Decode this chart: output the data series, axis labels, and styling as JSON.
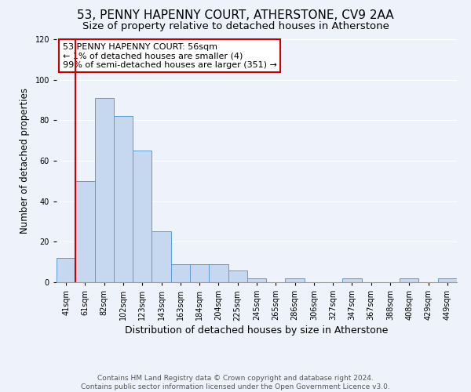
{
  "title": "53, PENNY HAPENNY COURT, ATHERSTONE, CV9 2AA",
  "subtitle": "Size of property relative to detached houses in Atherstone",
  "xlabel": "Distribution of detached houses by size in Atherstone",
  "ylabel": "Number of detached properties",
  "bar_labels": [
    "41sqm",
    "61sqm",
    "82sqm",
    "102sqm",
    "123sqm",
    "143sqm",
    "163sqm",
    "184sqm",
    "204sqm",
    "225sqm",
    "245sqm",
    "265sqm",
    "286sqm",
    "306sqm",
    "327sqm",
    "347sqm",
    "367sqm",
    "388sqm",
    "408sqm",
    "429sqm",
    "449sqm"
  ],
  "bar_values": [
    12,
    50,
    91,
    82,
    65,
    25,
    9,
    9,
    9,
    6,
    2,
    0,
    2,
    0,
    0,
    2,
    0,
    0,
    2,
    0,
    2
  ],
  "bar_color": "#c5d8f0",
  "bar_edge_color": "#5a9fd4",
  "ylim": [
    0,
    120
  ],
  "yticks": [
    0,
    20,
    40,
    60,
    80,
    100,
    120
  ],
  "property_line_color": "#cc0000",
  "annotation_title": "53 PENNY HAPENNY COURT: 56sqm",
  "annotation_line1": "← 1% of detached houses are smaller (4)",
  "annotation_line2": "99% of semi-detached houses are larger (351) →",
  "annotation_box_color": "#ffffff",
  "annotation_box_edge_color": "#cc0000",
  "footer_line1": "Contains HM Land Registry data © Crown copyright and database right 2024.",
  "footer_line2": "Contains public sector information licensed under the Open Government Licence v3.0.",
  "background_color": "#eef2fa",
  "grid_color": "#ffffff",
  "title_fontsize": 11,
  "subtitle_fontsize": 9.5,
  "xlabel_fontsize": 9,
  "ylabel_fontsize": 8.5,
  "tick_fontsize": 7,
  "annotation_fontsize": 8,
  "footer_fontsize": 6.5
}
